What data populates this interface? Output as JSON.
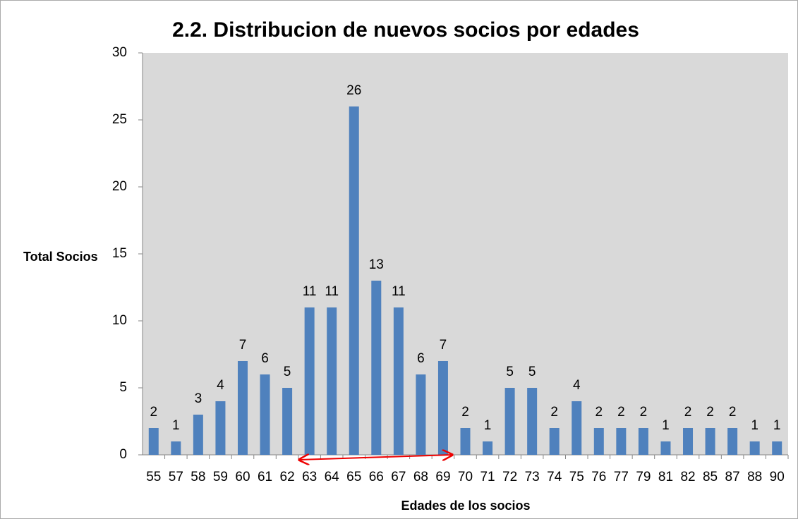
{
  "chart_data": {
    "type": "bar",
    "title": "2.2. Distribucion de nuevos socios por edades",
    "x_label": "Edades de los socios",
    "y_label": "Total Socios",
    "categories": [
      "55",
      "57",
      "58",
      "59",
      "60",
      "61",
      "62",
      "63",
      "64",
      "65",
      "66",
      "67",
      "68",
      "69",
      "70",
      "71",
      "72",
      "73",
      "74",
      "75",
      "76",
      "77",
      "79",
      "81",
      "82",
      "85",
      "87",
      "88",
      "90"
    ],
    "values": [
      2,
      1,
      3,
      4,
      7,
      6,
      5,
      11,
      11,
      26,
      13,
      11,
      6,
      7,
      2,
      1,
      5,
      5,
      2,
      4,
      2,
      2,
      2,
      1,
      2,
      2,
      2,
      1,
      1
    ],
    "color": "#4f81bd",
    "ylim": [
      0,
      30
    ],
    "yticks": [
      0,
      5,
      10,
      15,
      20,
      25,
      30
    ],
    "grid": false
  }
}
